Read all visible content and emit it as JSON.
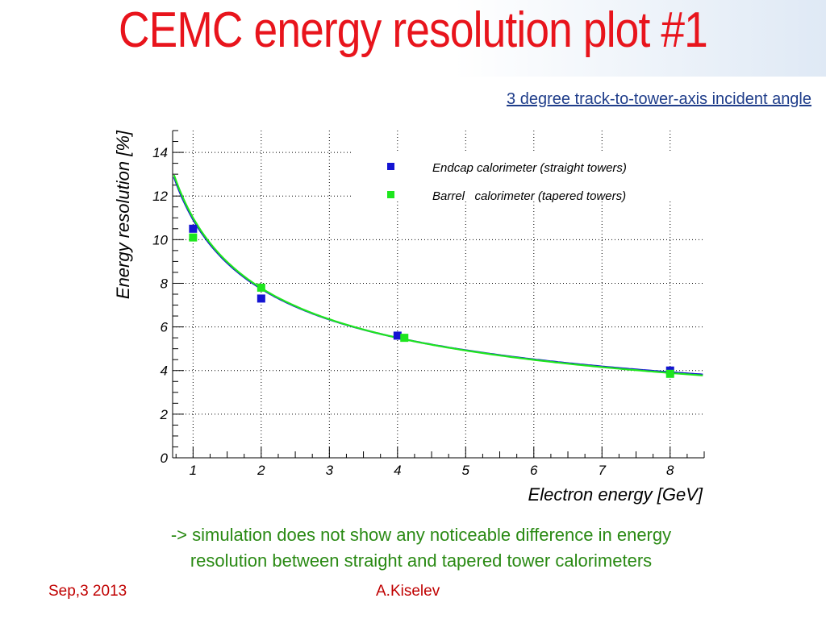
{
  "slide": {
    "title": "CEMC energy resolution plot #1",
    "subtitle": "3 degree track-to-tower-axis incident angle",
    "conclusion_line1": "-> simulation does not show any noticeable difference in energy",
    "conclusion_line2": "resolution between straight and tapered tower calorimeters",
    "footer_date": "Sep,3 2013",
    "footer_author": "A.Kiselev"
  },
  "chart_data": {
    "type": "scatter",
    "title": "",
    "xlabel": "Electron energy [GeV]",
    "ylabel": "Energy resolution [%]",
    "xlim": [
      0.7,
      8.5
    ],
    "ylim": [
      0,
      15
    ],
    "x_ticks": [
      1,
      2,
      3,
      4,
      5,
      6,
      7,
      8
    ],
    "y_ticks": [
      0,
      2,
      4,
      6,
      8,
      10,
      12,
      14
    ],
    "grid": true,
    "legend_position": "top-right",
    "series": [
      {
        "name": "Endcap calorimeter (straight towers)",
        "color": "#1414d2",
        "points": [
          {
            "x": 1,
            "y": 10.5
          },
          {
            "x": 2,
            "y": 7.3
          },
          {
            "x": 4,
            "y": 5.6
          },
          {
            "x": 8,
            "y": 4.0
          }
        ],
        "fit": {
          "a": 10.9,
          "b": 0.75
        }
      },
      {
        "name": "Barrel   calorimeter (tapered towers)",
        "color": "#1ee61e",
        "points": [
          {
            "x": 1,
            "y": 10.1
          },
          {
            "x": 2,
            "y": 7.8
          },
          {
            "x": 4.1,
            "y": 5.5
          },
          {
            "x": 8,
            "y": 3.85
          }
        ],
        "fit": {
          "a": 11.0,
          "b": 0.0
        }
      }
    ]
  }
}
